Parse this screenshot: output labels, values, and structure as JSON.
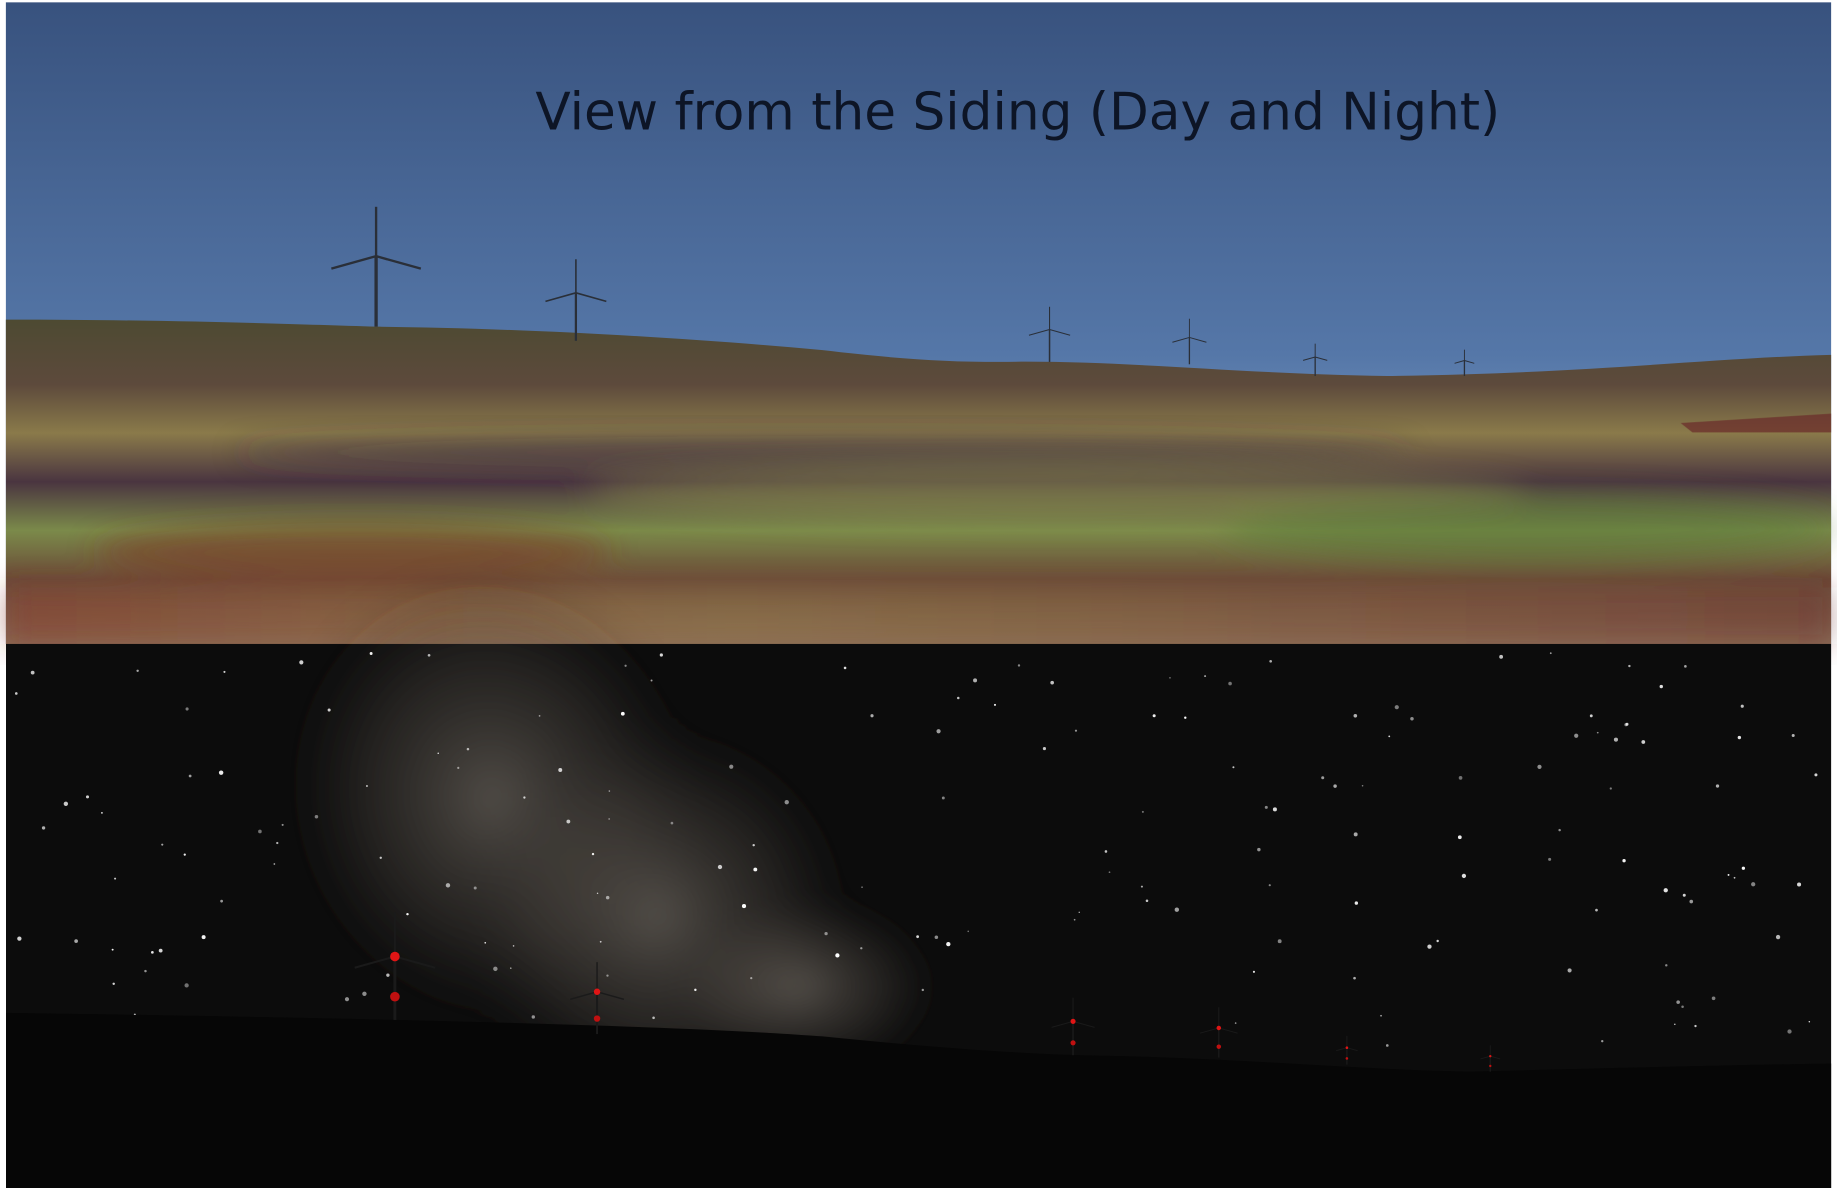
{
  "title": "View from the Siding (Day and Night)"
}
